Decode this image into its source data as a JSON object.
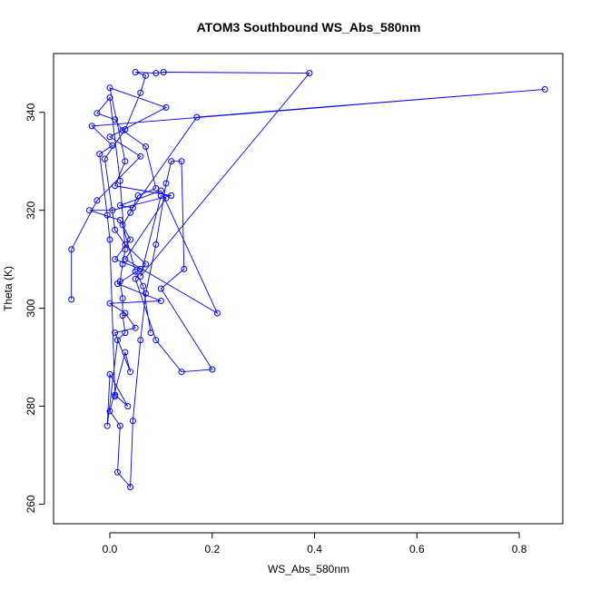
{
  "chart_data": {
    "type": "scatter",
    "title": "ATOM3 Southbound WS_Abs_580nm",
    "xlabel": "WS_Abs_580nm",
    "ylabel": "Theta (K)",
    "xlim": [
      -0.11,
      0.885
    ],
    "ylim": [
      256,
      352
    ],
    "xticks": [
      "0.0",
      "0.2",
      "0.4",
      "0.6",
      "0.8"
    ],
    "xtick_values": [
      0.0,
      0.2,
      0.4,
      0.6,
      0.8
    ],
    "yticks": [
      "260",
      "280",
      "300",
      "320",
      "340"
    ],
    "ytick_values": [
      260,
      280,
      300,
      320,
      340
    ],
    "grid": false,
    "connected": true,
    "series": [
      {
        "color": "#0000ff",
        "marker": "open-circle",
        "points": [
          [
            -0.075,
            301.8
          ],
          [
            -0.075,
            312.0
          ],
          [
            -0.025,
            322.0
          ],
          [
            0.06,
            331.0
          ],
          [
            0.0,
            335.0
          ],
          [
            0.11,
            341.0
          ],
          [
            0.0,
            345.0
          ],
          [
            0.03,
            330.0
          ],
          [
            0.01,
            325.0
          ],
          [
            0.12,
            323.0
          ],
          [
            0.005,
            320.0
          ],
          [
            -0.04,
            320.0
          ],
          [
            0.02,
            318.0
          ],
          [
            0.04,
            314.0
          ],
          [
            0.01,
            310.0
          ],
          [
            0.06,
            308.0
          ],
          [
            0.015,
            305.0
          ],
          [
            0.1,
            301.5
          ],
          [
            0.0,
            301.0
          ],
          [
            0.03,
            299.0
          ],
          [
            0.05,
            296.0
          ],
          [
            0.01,
            295.0
          ],
          [
            0.04,
            287.0
          ],
          [
            0.03,
            291.0
          ],
          [
            0.0,
            279.0
          ],
          [
            0.02,
            276.0
          ],
          [
            0.015,
            266.5
          ],
          [
            0.04,
            263.5
          ],
          [
            0.045,
            277.0
          ],
          [
            0.06,
            293.5
          ],
          [
            0.07,
            303.0
          ],
          [
            0.09,
            313.0
          ],
          [
            0.11,
            325.5
          ],
          [
            0.12,
            330.0
          ],
          [
            0.14,
            330.0
          ],
          [
            0.145,
            308.0
          ],
          [
            0.1,
            304.0
          ],
          [
            0.2,
            287.5
          ],
          [
            0.14,
            287.0
          ],
          [
            0.09,
            293.5
          ],
          [
            0.05,
            306.0
          ],
          [
            0.07,
            309.0
          ],
          [
            0.03,
            313.0
          ],
          [
            0.01,
            316.0
          ],
          [
            -0.01,
            330.5
          ],
          [
            0.03,
            336.5
          ],
          [
            0.06,
            344.0
          ],
          [
            0.07,
            347.5
          ],
          [
            0.05,
            348.2
          ],
          [
            0.09,
            348.0
          ],
          [
            0.105,
            348.2
          ],
          [
            0.39,
            348.0
          ],
          [
            0.06,
            306.5
          ],
          [
            0.1,
            323.0
          ],
          [
            0.11,
            322.5
          ],
          [
            0.03,
            310.0
          ],
          [
            0.21,
            299.0
          ],
          [
            0.1,
            324.0
          ],
          [
            0.02,
            321.0
          ],
          [
            0.045,
            320.5
          ],
          [
            0.17,
            339.0
          ],
          [
            0.85,
            344.7
          ],
          [
            -0.035,
            337.2
          ],
          [
            0.005,
            333.2
          ],
          [
            -0.02,
            331.5
          ],
          [
            -0.005,
            319.0
          ],
          [
            0.0,
            314.0
          ],
          [
            0.01,
            282.0
          ],
          [
            0.01,
            282.3
          ],
          [
            0.035,
            280.0
          ],
          [
            0.0,
            286.5
          ],
          [
            -0.005,
            276.0
          ],
          [
            0.015,
            293.5
          ],
          [
            0.03,
            295.0
          ],
          [
            0.025,
            298.5
          ],
          [
            0.025,
            302.0
          ],
          [
            0.02,
            305.5
          ],
          [
            0.025,
            309.0
          ],
          [
            0.03,
            312.0
          ],
          [
            0.02,
            326.0
          ],
          [
            0.0,
            343.0
          ],
          [
            -0.025,
            339.8
          ],
          [
            0.01,
            338.5
          ],
          [
            0.025,
            336.3
          ],
          [
            0.07,
            333.0
          ],
          [
            0.09,
            324.5
          ],
          [
            0.055,
            323.0
          ],
          [
            0.04,
            319.5
          ],
          [
            0.025,
            317.0
          ],
          [
            0.05,
            307.5
          ],
          [
            0.065,
            304.5
          ],
          [
            0.08,
            295.0
          ]
        ]
      }
    ]
  }
}
